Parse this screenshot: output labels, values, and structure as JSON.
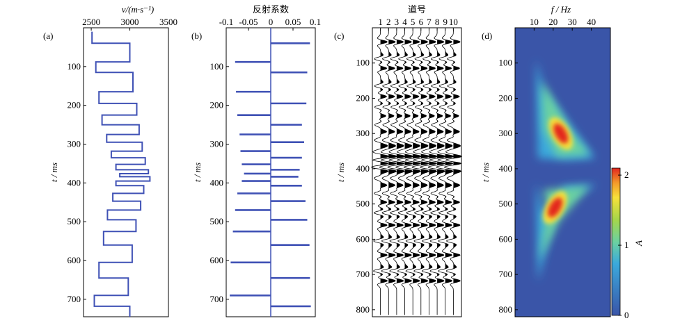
{
  "panels": {
    "a": {
      "label": "(a)",
      "xlabel": "v/(m·s⁻¹)",
      "ylabel": "t / ms",
      "xticks": [
        "2500",
        "3000",
        "3500"
      ],
      "yticks": [
        "100",
        "200",
        "300",
        "400",
        "500",
        "600",
        "700"
      ]
    },
    "b": {
      "label": "(b)",
      "xlabel": "反射系数",
      "ylabel": "t / ms",
      "xticks": [
        "-0.1",
        "-0.05",
        "0",
        "0.05",
        "0.1"
      ],
      "yticks": [
        "100",
        "200",
        "300",
        "400",
        "500",
        "600",
        "700"
      ]
    },
    "c": {
      "label": "(c)",
      "xlabel": "道号",
      "ylabel": "t / ms",
      "xticks": [
        "1",
        "2",
        "3",
        "4",
        "5",
        "6",
        "7",
        "8",
        "9",
        "10"
      ],
      "yticks": [
        "100",
        "200",
        "300",
        "400",
        "500",
        "600",
        "700",
        "800"
      ]
    },
    "d": {
      "label": "(d)",
      "xlabel": "f / Hz",
      "ylabel": "t / ms",
      "xticks": [
        "10",
        "20",
        "30",
        "40"
      ],
      "yticks": [
        "100",
        "200",
        "300",
        "400",
        "500",
        "600",
        "700",
        "800"
      ],
      "colorbar_label": "A",
      "colorbar_ticks": [
        "0",
        "1",
        "2"
      ]
    }
  },
  "colors": {
    "line": "#3f51b5",
    "heat_bg": "#3a55a8"
  },
  "chart_data": [
    {
      "type": "line",
      "panel": "a",
      "xlim": [
        2400,
        3500
      ],
      "ylim": [
        0,
        745
      ],
      "velocity_steps": [
        {
          "t0": 10,
          "t1": 40,
          "v": 2510
        },
        {
          "t0": 40,
          "t1": 88,
          "v": 3000
        },
        {
          "t0": 88,
          "t1": 115,
          "v": 2560
        },
        {
          "t0": 115,
          "t1": 165,
          "v": 3040
        },
        {
          "t0": 165,
          "t1": 195,
          "v": 2600
        },
        {
          "t0": 195,
          "t1": 225,
          "v": 3090
        },
        {
          "t0": 225,
          "t1": 250,
          "v": 2640
        },
        {
          "t0": 250,
          "t1": 275,
          "v": 3120
        },
        {
          "t0": 275,
          "t1": 295,
          "v": 2700
        },
        {
          "t0": 295,
          "t1": 318,
          "v": 3160
        },
        {
          "t0": 318,
          "t1": 335,
          "v": 2760
        },
        {
          "t0": 335,
          "t1": 352,
          "v": 3200
        },
        {
          "t0": 352,
          "t1": 366,
          "v": 2820
        },
        {
          "t0": 366,
          "t1": 376,
          "v": 3240
        },
        {
          "t0": 376,
          "t1": 384,
          "v": 2870
        },
        {
          "t0": 384,
          "t1": 395,
          "v": 3260
        },
        {
          "t0": 395,
          "t1": 407,
          "v": 2820
        },
        {
          "t0": 407,
          "t1": 427,
          "v": 3180
        },
        {
          "t0": 427,
          "t1": 447,
          "v": 2780
        },
        {
          "t0": 447,
          "t1": 470,
          "v": 3140
        },
        {
          "t0": 470,
          "t1": 495,
          "v": 2710
        },
        {
          "t0": 495,
          "t1": 525,
          "v": 3080
        },
        {
          "t0": 525,
          "t1": 560,
          "v": 2660
        },
        {
          "t0": 560,
          "t1": 605,
          "v": 3030
        },
        {
          "t0": 605,
          "t1": 645,
          "v": 2600
        },
        {
          "t0": 645,
          "t1": 690,
          "v": 2980
        },
        {
          "t0": 690,
          "t1": 718,
          "v": 2540
        },
        {
          "t0": 718,
          "t1": 745,
          "v": 3000
        }
      ]
    },
    {
      "type": "line",
      "panel": "b",
      "xlim": [
        -0.1,
        0.1
      ],
      "ylim": [
        0,
        745
      ],
      "reflectivity_spikes": [
        {
          "t": 40,
          "r": 0.088
        },
        {
          "t": 88,
          "r": -0.08
        },
        {
          "t": 115,
          "r": 0.082
        },
        {
          "t": 165,
          "r": -0.078
        },
        {
          "t": 195,
          "r": 0.08
        },
        {
          "t": 225,
          "r": -0.075
        },
        {
          "t": 250,
          "r": 0.07
        },
        {
          "t": 275,
          "r": -0.07
        },
        {
          "t": 295,
          "r": 0.075
        },
        {
          "t": 318,
          "r": -0.068
        },
        {
          "t": 335,
          "r": 0.07
        },
        {
          "t": 352,
          "r": -0.065
        },
        {
          "t": 366,
          "r": 0.065
        },
        {
          "t": 376,
          "r": -0.06
        },
        {
          "t": 384,
          "r": 0.062
        },
        {
          "t": 395,
          "r": -0.065
        },
        {
          "t": 407,
          "r": 0.07
        },
        {
          "t": 427,
          "r": -0.075
        },
        {
          "t": 447,
          "r": 0.078
        },
        {
          "t": 470,
          "r": -0.08
        },
        {
          "t": 495,
          "r": 0.082
        },
        {
          "t": 525,
          "r": -0.085
        },
        {
          "t": 560,
          "r": 0.087
        },
        {
          "t": 605,
          "r": -0.09
        },
        {
          "t": 645,
          "r": 0.088
        },
        {
          "t": 690,
          "r": -0.092
        },
        {
          "t": 718,
          "r": 0.09
        }
      ]
    },
    {
      "type": "line",
      "panel": "c",
      "xlim": [
        0,
        11
      ],
      "ylim": [
        0,
        820
      ],
      "traces": [
        1,
        2,
        3,
        4,
        5,
        6,
        7,
        8,
        9,
        10
      ]
    },
    {
      "type": "heatmap",
      "panel": "d",
      "xlim": [
        0,
        50
      ],
      "ylim": [
        0,
        820
      ],
      "clim": [
        0,
        2.1
      ],
      "blobs": [
        {
          "name": "upper",
          "t_start": 90,
          "t_end": 370,
          "f_start": 11,
          "f_end": 42,
          "peak_t": 300,
          "peak_f": 24,
          "peak_A": 2.0
        },
        {
          "name": "lower",
          "t_start": 440,
          "t_end": 720,
          "f_start": 11,
          "f_end": 43,
          "peak_t": 510,
          "peak_f": 21,
          "peak_A": 2.0
        }
      ]
    }
  ]
}
